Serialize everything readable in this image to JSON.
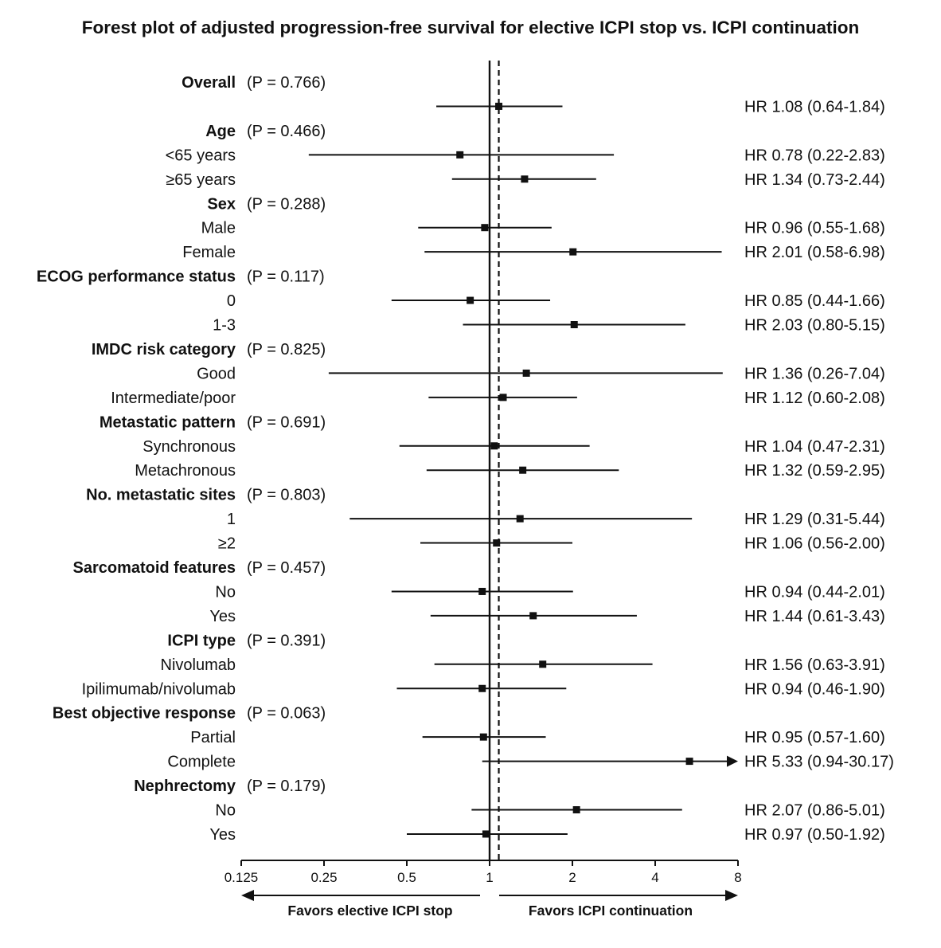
{
  "chart_data": {
    "type": "forest",
    "title": "Forest plot of adjusted progression-free survival for elective ICPI stop vs. ICPI continuation",
    "x_scale": "log2",
    "xlim": [
      0.125,
      8
    ],
    "x_ticks": [
      "0.125",
      "0.25",
      "0.5",
      "1",
      "2",
      "4",
      "8"
    ],
    "null_line": 1,
    "overall_line": 1.08,
    "favors_left": "Favors elective ICPI stop",
    "favors_right": "Favors ICPI continuation",
    "rows": [
      {
        "type": "group",
        "label": "Overall",
        "p": "(P = 0.766)"
      },
      {
        "type": "estimate",
        "label": "",
        "hr": 1.08,
        "lo": 0.64,
        "hi": 1.84,
        "text": "HR 1.08 (0.64-1.84)"
      },
      {
        "type": "group",
        "label": "Age",
        "p": "(P = 0.466)"
      },
      {
        "type": "estimate",
        "label": "<65 years",
        "hr": 0.78,
        "lo": 0.22,
        "hi": 2.83,
        "text": "HR 0.78 (0.22-2.83)"
      },
      {
        "type": "estimate",
        "label": "≥65 years",
        "hr": 1.34,
        "lo": 0.73,
        "hi": 2.44,
        "text": "HR 1.34 (0.73-2.44)"
      },
      {
        "type": "group",
        "label": "Sex",
        "p": "(P = 0.288)"
      },
      {
        "type": "estimate",
        "label": "Male",
        "hr": 0.96,
        "lo": 0.55,
        "hi": 1.68,
        "text": "HR 0.96 (0.55-1.68)"
      },
      {
        "type": "estimate",
        "label": "Female",
        "hr": 2.01,
        "lo": 0.58,
        "hi": 6.98,
        "text": "HR 2.01 (0.58-6.98)"
      },
      {
        "type": "group",
        "label": "ECOG performance status",
        "p": "(P = 0.117)"
      },
      {
        "type": "estimate",
        "label": "0",
        "hr": 0.85,
        "lo": 0.44,
        "hi": 1.66,
        "text": "HR 0.85 (0.44-1.66)"
      },
      {
        "type": "estimate",
        "label": "1-3",
        "hr": 2.03,
        "lo": 0.8,
        "hi": 5.15,
        "text": "HR 2.03 (0.80-5.15)"
      },
      {
        "type": "group",
        "label": "IMDC risk category",
        "p": "(P = 0.825)"
      },
      {
        "type": "estimate",
        "label": "Good",
        "hr": 1.36,
        "lo": 0.26,
        "hi": 7.04,
        "text": "HR 1.36 (0.26-7.04)"
      },
      {
        "type": "estimate",
        "label": "Intermediate/poor",
        "hr": 1.12,
        "lo": 0.6,
        "hi": 2.08,
        "text": "HR 1.12 (0.60-2.08)"
      },
      {
        "type": "group",
        "label": "Metastatic pattern",
        "p": "(P = 0.691)"
      },
      {
        "type": "estimate",
        "label": "Synchronous",
        "hr": 1.04,
        "lo": 0.47,
        "hi": 2.31,
        "text": "HR 1.04 (0.47-2.31)"
      },
      {
        "type": "estimate",
        "label": "Metachronous",
        "hr": 1.32,
        "lo": 0.59,
        "hi": 2.95,
        "text": "HR 1.32 (0.59-2.95)"
      },
      {
        "type": "group",
        "label": "No. metastatic sites",
        "p": "(P = 0.803)"
      },
      {
        "type": "estimate",
        "label": "1",
        "hr": 1.29,
        "lo": 0.31,
        "hi": 5.44,
        "text": "HR 1.29 (0.31-5.44)"
      },
      {
        "type": "estimate",
        "label": "≥2",
        "hr": 1.06,
        "lo": 0.56,
        "hi": 2.0,
        "text": "HR 1.06 (0.56-2.00)"
      },
      {
        "type": "group",
        "label": "Sarcomatoid features",
        "p": "(P = 0.457)"
      },
      {
        "type": "estimate",
        "label": "No",
        "hr": 0.94,
        "lo": 0.44,
        "hi": 2.01,
        "text": "HR 0.94 (0.44-2.01)"
      },
      {
        "type": "estimate",
        "label": "Yes",
        "hr": 1.44,
        "lo": 0.61,
        "hi": 3.43,
        "text": "HR 1.44 (0.61-3.43)"
      },
      {
        "type": "group",
        "label": "ICPI type",
        "p": "(P = 0.391)"
      },
      {
        "type": "estimate",
        "label": "Nivolumab",
        "hr": 1.56,
        "lo": 0.63,
        "hi": 3.91,
        "text": "HR 1.56 (0.63-3.91)"
      },
      {
        "type": "estimate",
        "label": "Ipilimumab/nivolumab",
        "hr": 0.94,
        "lo": 0.46,
        "hi": 1.9,
        "text": "HR 0.94 (0.46-1.90)"
      },
      {
        "type": "group",
        "label": "Best objective response",
        "p": "(P = 0.063)"
      },
      {
        "type": "estimate",
        "label": "Partial",
        "hr": 0.95,
        "lo": 0.57,
        "hi": 1.6,
        "text": "HR 0.95 (0.57-1.60)"
      },
      {
        "type": "estimate",
        "label": "Complete",
        "hr": 5.33,
        "lo": 0.94,
        "hi": 30.17,
        "text": "HR 5.33 (0.94-30.17)"
      },
      {
        "type": "group",
        "label": "Nephrectomy",
        "p": "(P = 0.179)"
      },
      {
        "type": "estimate",
        "label": "No",
        "hr": 2.07,
        "lo": 0.86,
        "hi": 5.01,
        "text": "HR 2.07 (0.86-5.01)"
      },
      {
        "type": "estimate",
        "label": "Yes",
        "hr": 0.97,
        "lo": 0.5,
        "hi": 1.92,
        "text": "HR 0.97 (0.50-1.92)"
      }
    ]
  }
}
